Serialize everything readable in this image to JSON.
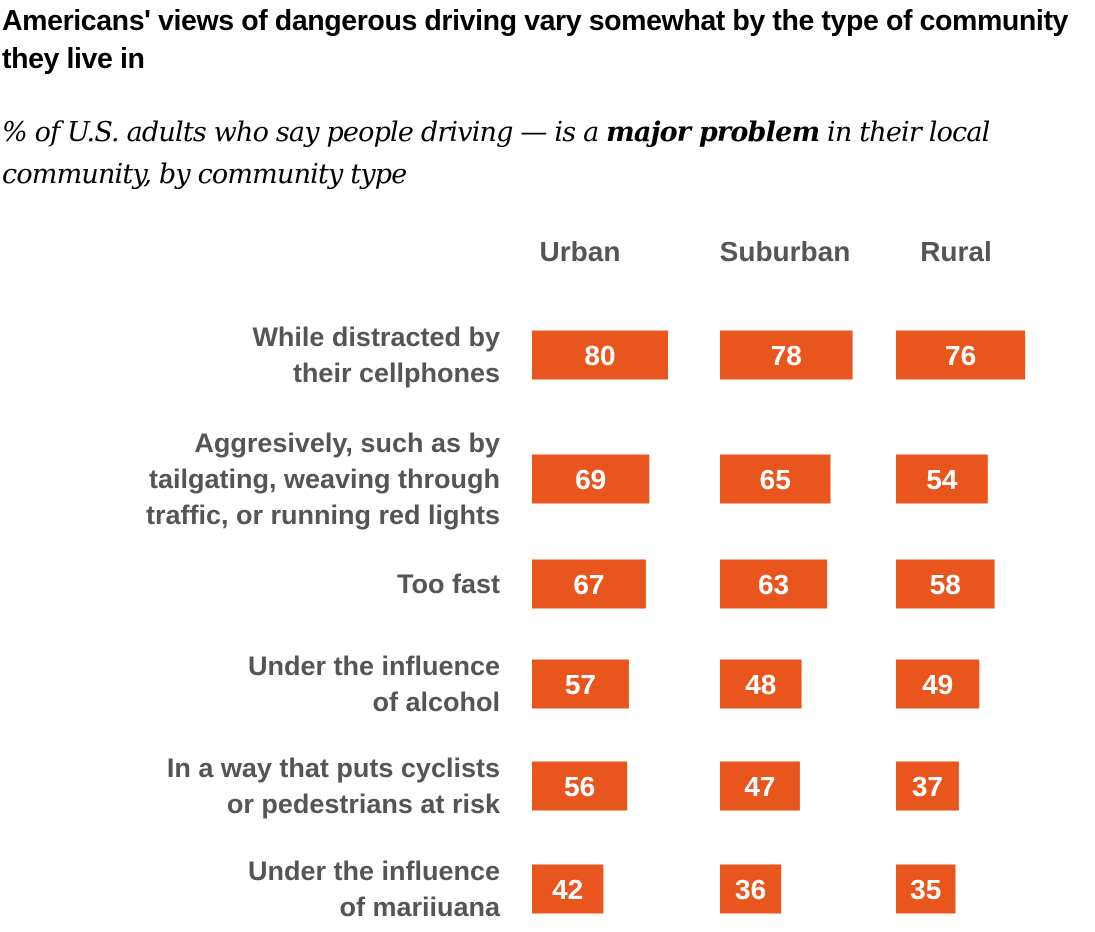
{
  "title": "Americans' views of dangerous driving vary somewhat by the type of community they live in",
  "subtitle": {
    "before": "% of U.S. adults who say people driving — is a ",
    "emphasis": "major problem",
    "after": " in their local community, by community type"
  },
  "chart_data": {
    "type": "bar",
    "orientation": "horizontal",
    "title": "Americans' views of dangerous driving vary somewhat by the type of community they live in",
    "bar_color": "#E8561E",
    "value_label_color": "#FFFFFF",
    "columns": [
      "Urban",
      "Suburban",
      "Rural"
    ],
    "categories": [
      [
        "While distracted by",
        "their cellphones"
      ],
      [
        "Aggresively, such as by",
        "tailgating, weaving through",
        "traffic, or running red lights"
      ],
      [
        "Too fast"
      ],
      [
        "Under the influence",
        "of alcohol"
      ],
      [
        "In a way that puts cyclists",
        "or pedestrians at risk"
      ],
      [
        "Under the influence",
        "of mariiuana"
      ]
    ],
    "series": [
      {
        "name": "Urban",
        "values": [
          80,
          69,
          67,
          57,
          56,
          42
        ]
      },
      {
        "name": "Suburban",
        "values": [
          78,
          65,
          63,
          48,
          47,
          36
        ]
      },
      {
        "name": "Rural",
        "values": [
          76,
          54,
          58,
          49,
          37,
          35
        ]
      }
    ],
    "grid": false,
    "legend": "none"
  }
}
